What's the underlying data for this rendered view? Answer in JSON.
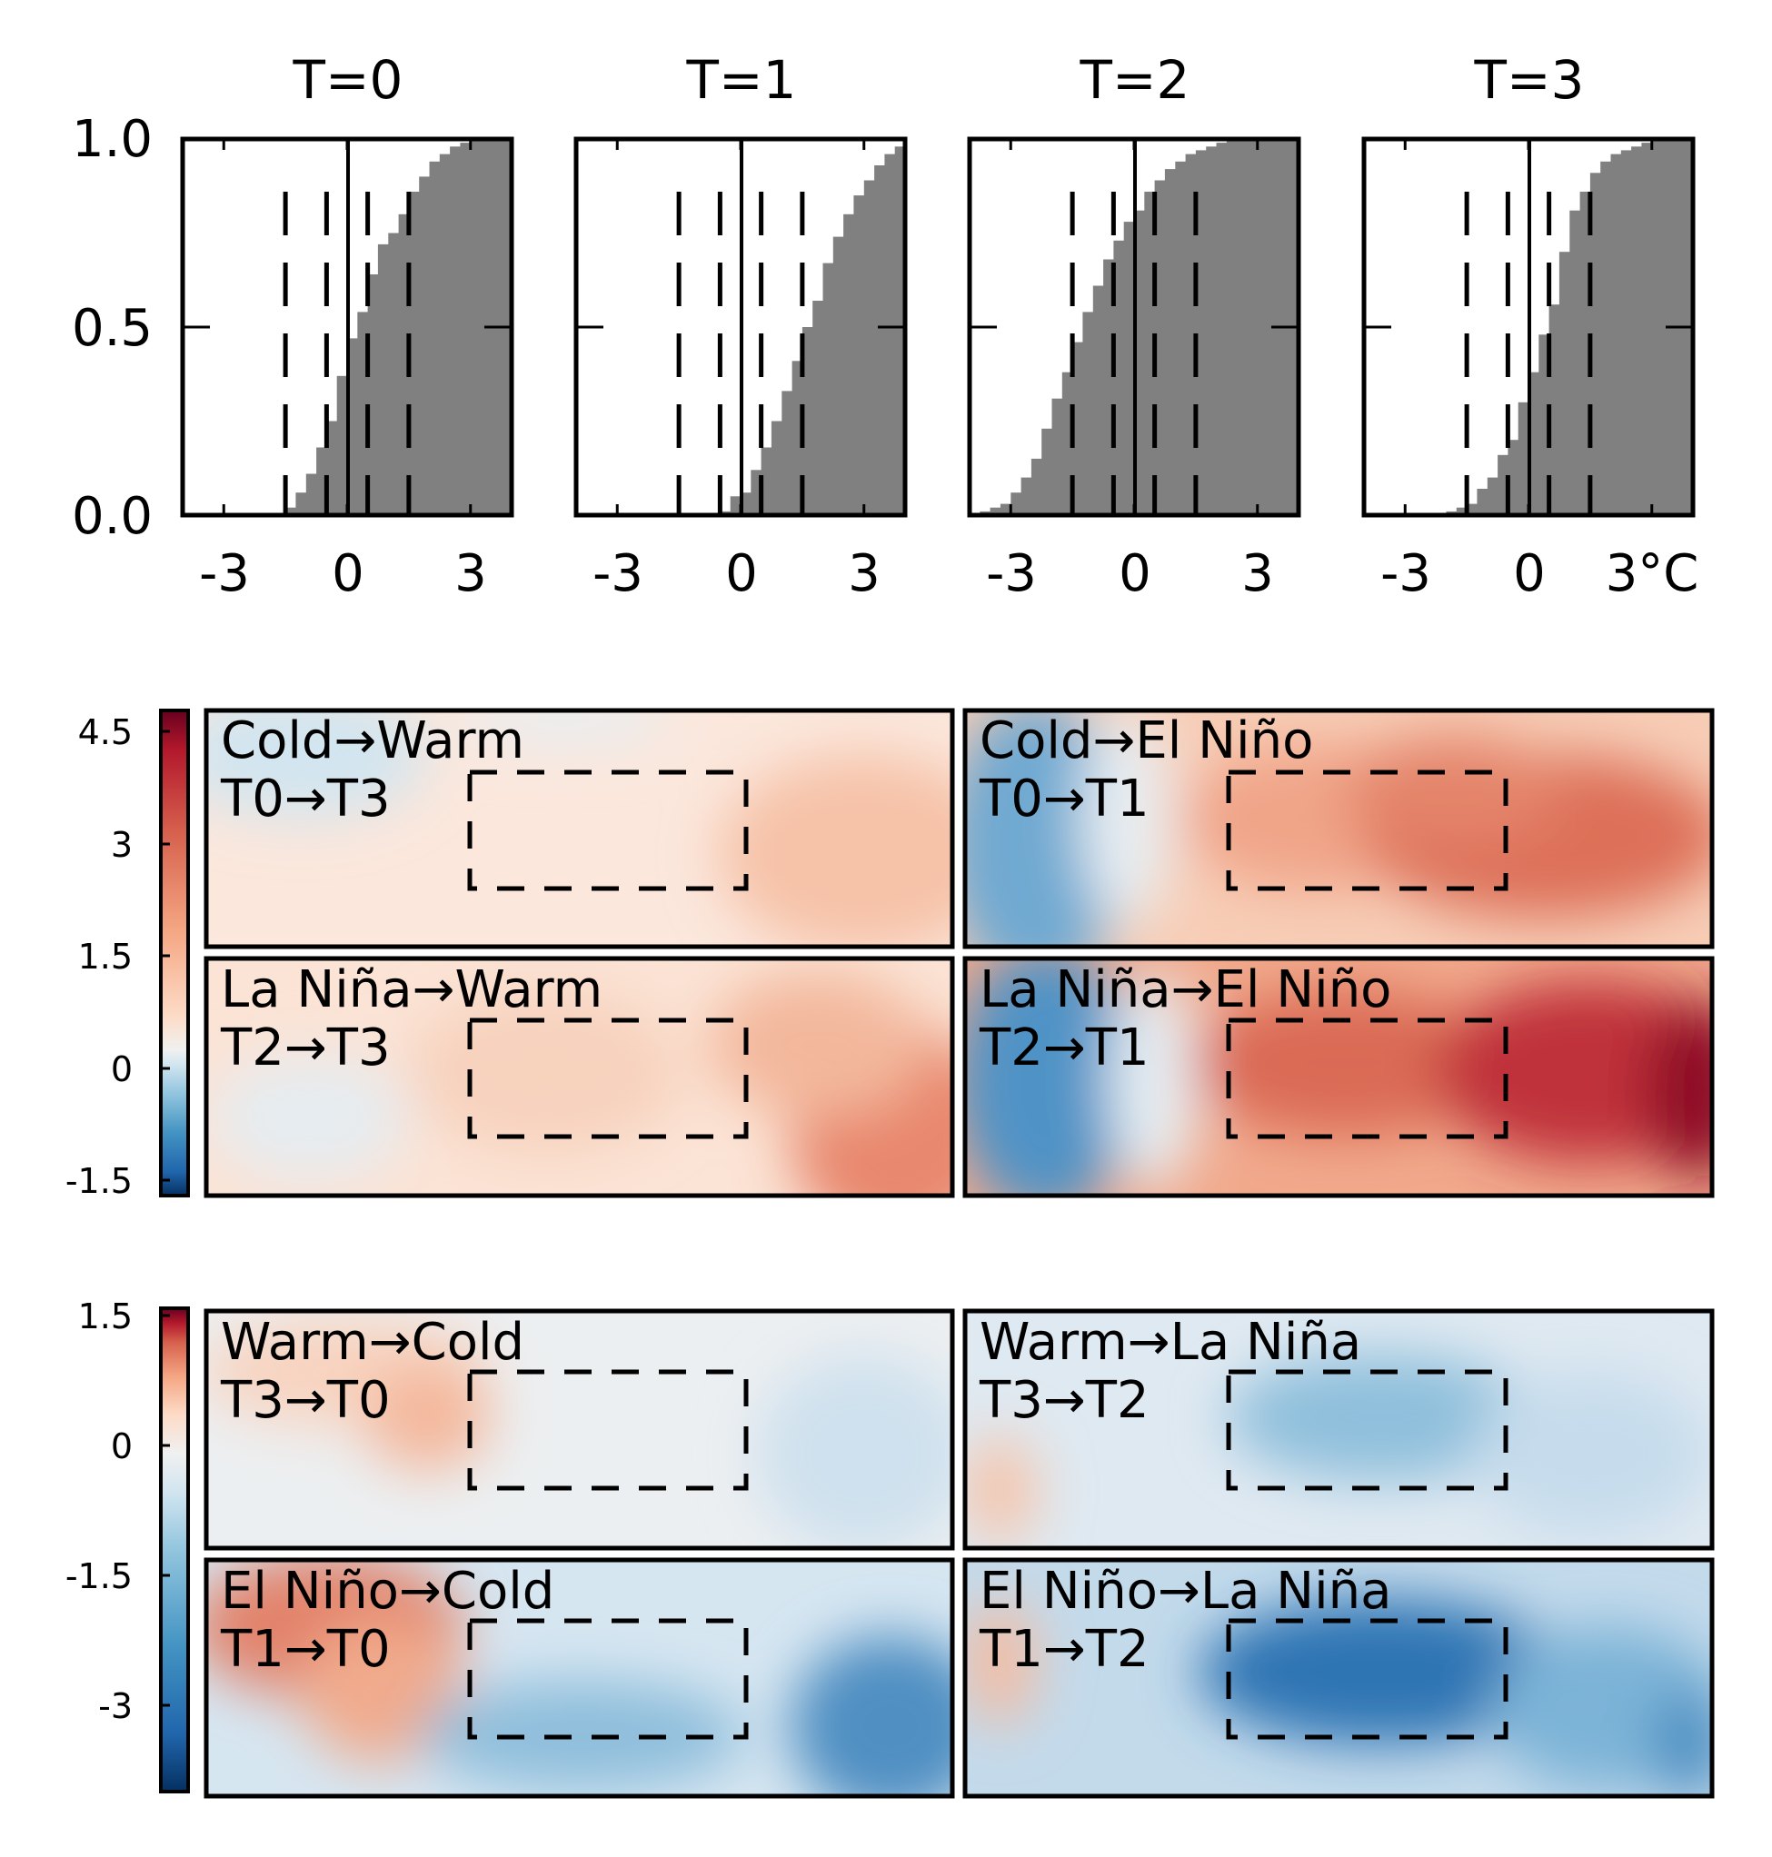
{
  "chart_data": [
    {
      "type": "histogram-cdf-panels",
      "yticks": [
        "1.0",
        "0.5",
        "0.0"
      ],
      "ylim": [
        0,
        1
      ],
      "xlim": [
        -4,
        4
      ],
      "xticks": [
        -3,
        0,
        3
      ],
      "dashed_thresholds": [
        -1.5,
        -0.5,
        0.5,
        1.5
      ],
      "panels": [
        {
          "title": "T=0",
          "xticklabels": [
            "-3",
            "0",
            "3"
          ],
          "bins": [
            -4,
            -3.75,
            -3.5,
            -3.25,
            -3,
            -2.75,
            -2.5,
            -2.25,
            -2,
            -1.75,
            -1.5,
            -1.25,
            -1,
            -0.75,
            -0.5,
            -0.25,
            0,
            0.25,
            0.5,
            0.75,
            1,
            1.25,
            1.5,
            1.75,
            2,
            2.25,
            2.5,
            2.75,
            3,
            3.25,
            3.5,
            3.75
          ],
          "cdf": [
            0,
            0,
            0,
            0,
            0,
            0,
            0,
            0,
            0,
            0,
            0.02,
            0.06,
            0.11,
            0.18,
            0.25,
            0.37,
            0.47,
            0.54,
            0.64,
            0.72,
            0.75,
            0.8,
            0.86,
            0.9,
            0.94,
            0.96,
            0.98,
            0.99,
            1,
            1,
            1,
            1
          ]
        },
        {
          "title": "T=1",
          "xticklabels": [
            "-3",
            "0",
            "3"
          ],
          "bins": [
            -4,
            -3.75,
            -3.5,
            -3.25,
            -3,
            -2.75,
            -2.5,
            -2.25,
            -2,
            -1.75,
            -1.5,
            -1.25,
            -1,
            -0.75,
            -0.5,
            -0.25,
            0,
            0.25,
            0.5,
            0.75,
            1,
            1.25,
            1.5,
            1.75,
            2,
            2.25,
            2.5,
            2.75,
            3,
            3.25,
            3.5,
            3.75
          ],
          "cdf": [
            0,
            0,
            0,
            0,
            0,
            0,
            0,
            0,
            0,
            0,
            0,
            0,
            0,
            0,
            0.01,
            0.05,
            0.06,
            0.12,
            0.18,
            0.25,
            0.33,
            0.41,
            0.5,
            0.57,
            0.67,
            0.74,
            0.8,
            0.85,
            0.89,
            0.93,
            0.96,
            0.98
          ]
        },
        {
          "title": "T=2",
          "xticklabels": [
            "-3",
            "0",
            "3"
          ],
          "bins": [
            -4,
            -3.75,
            -3.5,
            -3.25,
            -3,
            -2.75,
            -2.5,
            -2.25,
            -2,
            -1.75,
            -1.5,
            -1.25,
            -1,
            -0.75,
            -0.5,
            -0.25,
            0,
            0.25,
            0.5,
            0.75,
            1,
            1.25,
            1.5,
            1.75,
            2,
            2.25,
            2.5,
            2.75,
            3,
            3.25,
            3.5,
            3.75
          ],
          "cdf": [
            0,
            0.01,
            0.02,
            0.03,
            0.06,
            0.1,
            0.15,
            0.23,
            0.31,
            0.38,
            0.46,
            0.54,
            0.61,
            0.68,
            0.73,
            0.78,
            0.81,
            0.86,
            0.89,
            0.92,
            0.94,
            0.96,
            0.97,
            0.98,
            0.99,
            1,
            1,
            1,
            1,
            1,
            1,
            1
          ]
        },
        {
          "title": "T=3",
          "xticklabels": [
            "-3",
            "0",
            "3°C"
          ],
          "bins": [
            -4,
            -3.75,
            -3.5,
            -3.25,
            -3,
            -2.75,
            -2.5,
            -2.25,
            -2,
            -1.75,
            -1.5,
            -1.25,
            -1,
            -0.75,
            -0.5,
            -0.25,
            0,
            0.25,
            0.5,
            0.75,
            1,
            1.25,
            1.5,
            1.75,
            2,
            2.25,
            2.5,
            2.75,
            3,
            3.25,
            3.5,
            3.75
          ],
          "cdf": [
            0,
            0,
            0,
            0,
            0,
            0,
            0,
            0,
            0.01,
            0.02,
            0.03,
            0.07,
            0.1,
            0.16,
            0.2,
            0.3,
            0.38,
            0.48,
            0.56,
            0.7,
            0.81,
            0.86,
            0.91,
            0.94,
            0.96,
            0.97,
            0.98,
            0.99,
            1,
            1,
            1,
            1
          ]
        }
      ]
    },
    {
      "type": "contour-map-panels",
      "colormap": "RdBu_r",
      "vmin": -1.8,
      "vmax": 5.0,
      "colorbar_ticks": [
        "4.5",
        "3",
        "1.5",
        "0",
        "-1.5"
      ],
      "colorbar_tick_values": [
        4.5,
        3,
        1.5,
        0,
        -1.5
      ],
      "panels": [
        {
          "label1": "Cold→Warm",
          "label2": "T0→T3"
        },
        {
          "label1": "Cold→El Niño",
          "label2": "T0→T1"
        },
        {
          "label1": "La Niña→Warm",
          "label2": "T2→T3"
        },
        {
          "label1": "La Niña→El Niño",
          "label2": "T2→T1"
        }
      ]
    },
    {
      "type": "contour-map-panels",
      "colormap": "RdBu_r",
      "vmin": -4.2,
      "vmax": 1.8,
      "colorbar_ticks": [
        "1.5",
        "0",
        "-1.5",
        "-3"
      ],
      "colorbar_tick_values": [
        1.5,
        0,
        -1.5,
        -3
      ],
      "panels": [
        {
          "label1": "Warm→Cold",
          "label2": "T3→T0"
        },
        {
          "label1": "Warm→La Niña",
          "label2": "T3→T2"
        },
        {
          "label1": "El Niño→Cold",
          "label2": "T1→T0"
        },
        {
          "label1": "El Niño→La Niña",
          "label2": "T1→T2"
        }
      ]
    }
  ]
}
